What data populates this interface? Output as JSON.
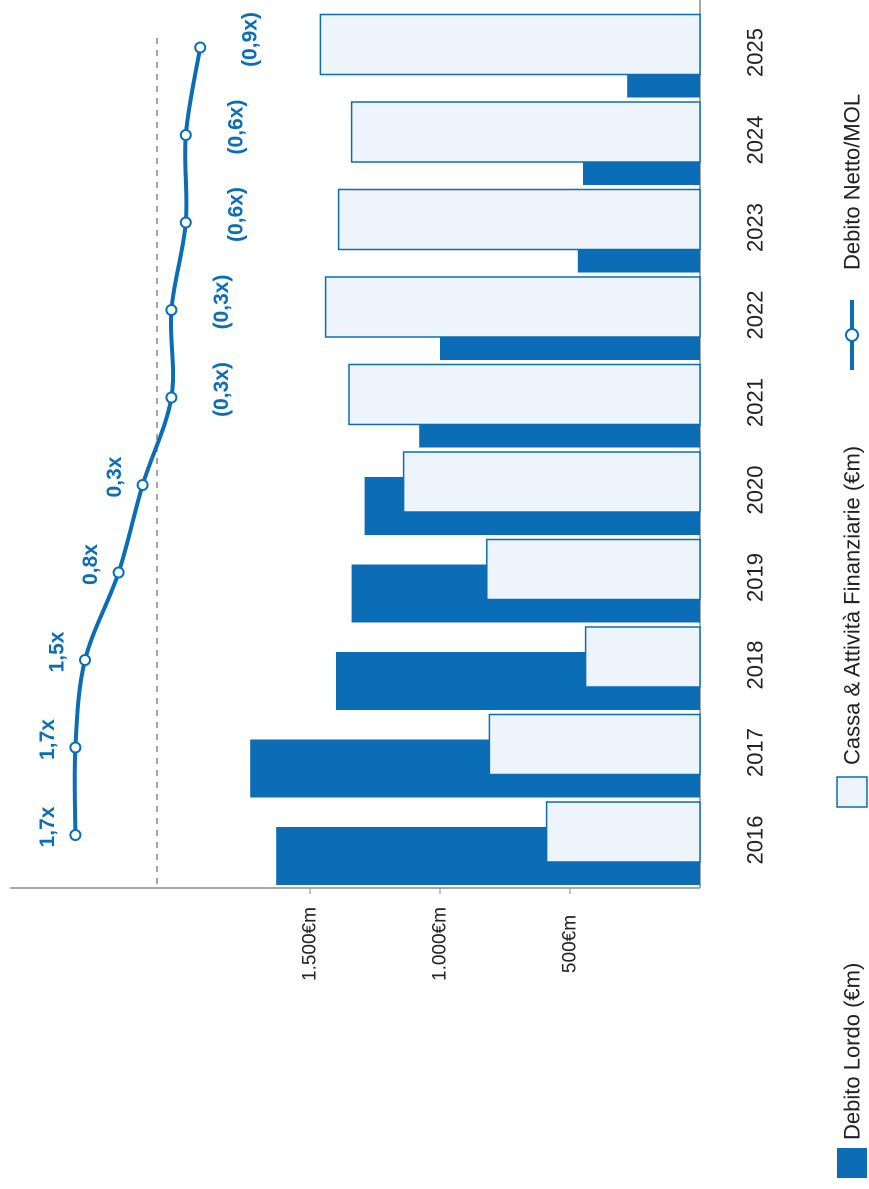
{
  "chart_data": {
    "type": "bar",
    "categories": [
      "2016",
      "2017",
      "2018",
      "2019",
      "2020",
      "2021",
      "2022",
      "2023",
      "2024",
      "2025"
    ],
    "series": [
      {
        "name": "Debito Lordo (€m)",
        "kind": "bar",
        "color": "#0b6db5",
        "values": [
          1630,
          1730,
          1400,
          1340,
          1290,
          1080,
          1000,
          470,
          450,
          280
        ]
      },
      {
        "name": "Cassa & Attività Finanziarie (€m)",
        "kind": "bar",
        "color": "#eef4fb",
        "border": "#0b6db5",
        "values": [
          590,
          810,
          440,
          820,
          1140,
          1350,
          1440,
          1390,
          1340,
          1460
        ]
      },
      {
        "name": "Debito Netto/MOL",
        "kind": "line",
        "color": "#0b6db5",
        "values": [
          1.7,
          1.7,
          1.5,
          0.8,
          0.3,
          -0.3,
          -0.3,
          -0.6,
          -0.6,
          -0.9
        ],
        "labels": [
          "1,7x",
          "1,7x",
          "1,5x",
          "0,8x",
          "0,3x",
          "(0,3x)",
          "(0,3x)",
          "(0,6x)",
          "(0,6x)",
          "(0,9x)"
        ]
      }
    ],
    "value_axis": {
      "ticks": [
        500,
        1000,
        1500
      ],
      "tick_labels": [
        "500€m",
        "1.000€m",
        "1.500€m"
      ],
      "range": [
        0,
        2100
      ]
    },
    "ratio_axis": {
      "range": [
        -1.2,
        2.0
      ],
      "zero_reference_line": true
    },
    "orientation": "rotated-90-clockwise",
    "legend_position": "bottom",
    "grid": false
  }
}
